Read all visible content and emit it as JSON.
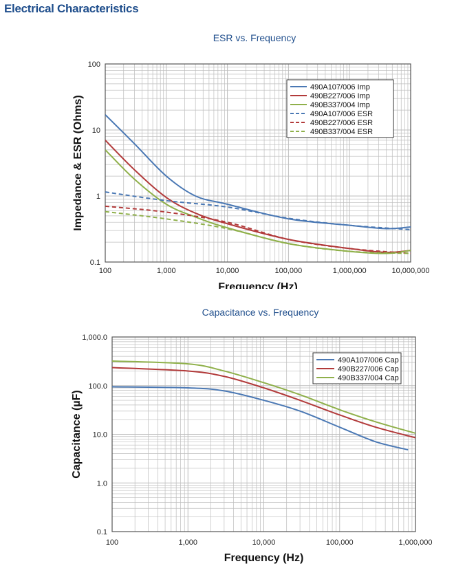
{
  "section_title": "Electrical Characteristics",
  "colors": {
    "section_title": "#1f4e8c",
    "chart_title": "#1f4e8c",
    "blue": "#4a78b4",
    "red": "#b23a3a",
    "green": "#8fb04a",
    "grid": "#bdbdbd",
    "axis": "#555555"
  },
  "chart_data": [
    {
      "type": "line",
      "title": "ESR vs. Frequency",
      "xlabel": "Frequency (Hz)",
      "ylabel": "Impedance & ESR (Ohms)",
      "xscale": "log",
      "yscale": "log",
      "xlim": [
        100,
        10000000
      ],
      "ylim": [
        0.1,
        100
      ],
      "xticks": [
        100,
        1000,
        10000,
        100000,
        1000000,
        10000000
      ],
      "xtick_labels": [
        "100",
        "1,000",
        "10,000",
        "100,000",
        "1,000,000",
        "10,000,000"
      ],
      "yticks": [
        0.1,
        1,
        10,
        100
      ],
      "ytick_labels": [
        "0.1",
        "1",
        "10",
        "100"
      ],
      "grid": true,
      "legend_placement": "top-right",
      "series": [
        {
          "name": "490A107/006 Imp",
          "color": "blue",
          "dashed": false,
          "x": [
            100,
            300,
            1000,
            3000,
            10000,
            100000,
            1000000,
            4000000,
            10000000
          ],
          "y": [
            17,
            6.2,
            2.0,
            1.0,
            0.75,
            0.45,
            0.36,
            0.32,
            0.34
          ]
        },
        {
          "name": "490B227/006 Imp",
          "color": "red",
          "dashed": false,
          "x": [
            100,
            300,
            1000,
            3000,
            10000,
            100000,
            1000000,
            4000000,
            10000000
          ],
          "y": [
            7,
            2.5,
            0.95,
            0.55,
            0.38,
            0.22,
            0.16,
            0.14,
            0.15
          ]
        },
        {
          "name": "490B337/004 Imp",
          "color": "green",
          "dashed": false,
          "x": [
            100,
            300,
            1000,
            3000,
            10000,
            100000,
            1000000,
            4000000,
            10000000
          ],
          "y": [
            5,
            1.8,
            0.75,
            0.48,
            0.33,
            0.19,
            0.145,
            0.135,
            0.15
          ]
        },
        {
          "name": "490A107/006 ESR",
          "color": "blue",
          "dashed": true,
          "x": [
            100,
            1000,
            10000,
            100000,
            1000000,
            10000000
          ],
          "y": [
            1.15,
            0.85,
            0.68,
            0.46,
            0.36,
            0.31
          ]
        },
        {
          "name": "490B227/006 ESR",
          "color": "red",
          "dashed": true,
          "x": [
            100,
            1000,
            10000,
            100000,
            1000000,
            10000000
          ],
          "y": [
            0.7,
            0.57,
            0.4,
            0.22,
            0.16,
            0.135
          ]
        },
        {
          "name": "490B337/004 ESR",
          "color": "green",
          "dashed": true,
          "x": [
            100,
            1000,
            10000,
            100000,
            1000000,
            10000000
          ],
          "y": [
            0.58,
            0.45,
            0.32,
            0.19,
            0.145,
            0.135
          ]
        }
      ]
    },
    {
      "type": "line",
      "title": "Capacitance vs. Frequency",
      "xlabel": "Frequency (Hz)",
      "ylabel": "Capacitance (µF)",
      "xscale": "log",
      "yscale": "log",
      "xlim": [
        100,
        1000000
      ],
      "ylim": [
        0.1,
        1000
      ],
      "xticks": [
        100,
        1000,
        10000,
        100000,
        1000000
      ],
      "xtick_labels": [
        "100",
        "1,000",
        "10,000",
        "100,000",
        "1,000,000"
      ],
      "yticks": [
        0.1,
        1,
        10,
        100,
        1000
      ],
      "ytick_labels": [
        "0.1",
        "1.0",
        "10.0",
        "100.0",
        "1,000.0"
      ],
      "grid": true,
      "legend_placement": "top-right",
      "series": [
        {
          "name": "490A107/006 Cap",
          "color": "blue",
          "dashed": false,
          "x": [
            100,
            1000,
            3000,
            10000,
            30000,
            100000,
            300000,
            800000
          ],
          "y": [
            95,
            90,
            78,
            50,
            30,
            14,
            7,
            4.8
          ]
        },
        {
          "name": "490B227/006 Cap",
          "color": "red",
          "dashed": false,
          "x": [
            100,
            1000,
            3000,
            10000,
            30000,
            100000,
            300000,
            1000000
          ],
          "y": [
            235,
            200,
            155,
            90,
            50,
            25,
            14,
            8.5
          ]
        },
        {
          "name": "490B337/004 Cap",
          "color": "green",
          "dashed": false,
          "x": [
            100,
            1000,
            3000,
            10000,
            30000,
            100000,
            300000,
            1000000
          ],
          "y": [
            320,
            280,
            200,
            115,
            65,
            32,
            18,
            10.5
          ]
        }
      ]
    }
  ]
}
